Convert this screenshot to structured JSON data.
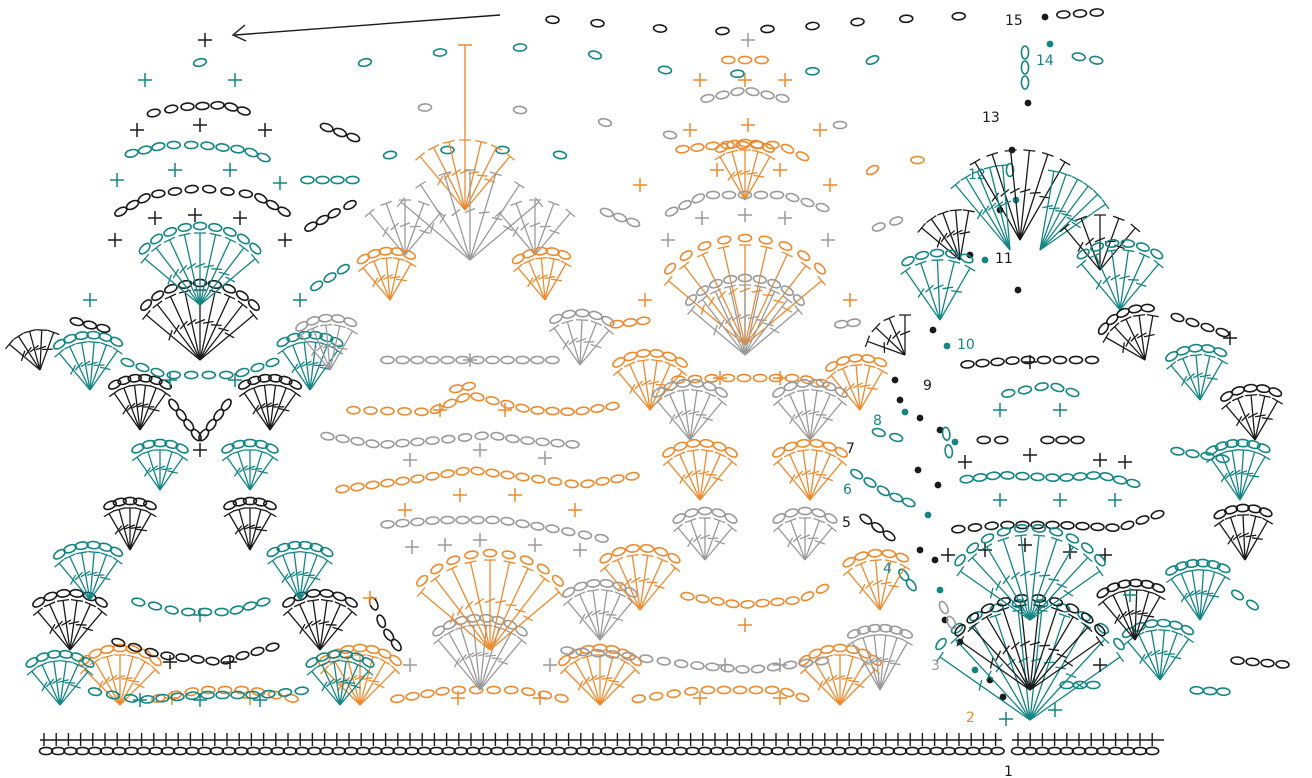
{
  "colors": {
    "black": "#1a1a1a",
    "teal": "#128584",
    "orange": "#ee8a2d",
    "gray": "#9a9a9a"
  },
  "row_labels": [
    {
      "label": "1",
      "color": "black"
    },
    {
      "label": "2",
      "color": "orange"
    },
    {
      "label": "3",
      "color": "gray"
    },
    {
      "label": "4",
      "color": "teal"
    },
    {
      "label": "5",
      "color": "black"
    },
    {
      "label": "6",
      "color": "teal"
    },
    {
      "label": "7",
      "color": "black"
    },
    {
      "label": "8",
      "color": "teal"
    },
    {
      "label": "9",
      "color": "black"
    },
    {
      "label": "10",
      "color": "teal"
    },
    {
      "label": "11",
      "color": "black"
    },
    {
      "label": "12",
      "color": "teal"
    },
    {
      "label": "13",
      "color": "black"
    },
    {
      "label": "14",
      "color": "teal"
    },
    {
      "label": "15",
      "color": "black"
    }
  ],
  "symbols": {
    "chain": "chain-oval",
    "single_crochet": "plus-cross",
    "double_crochet": "barred-post",
    "slip_stitch": "filled-dot",
    "direction": "arrow-left"
  }
}
